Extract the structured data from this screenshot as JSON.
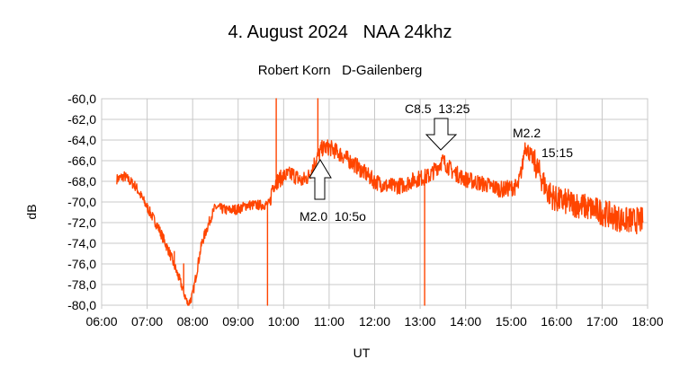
{
  "chart_data": {
    "type": "line",
    "title": "4. August 2024   NAA 24khz",
    "subtitle": "Robert Korn   D-Gailenberg",
    "xlabel": "UT",
    "ylabel": "dB",
    "xlim": [
      "06:00",
      "18:00"
    ],
    "ylim": [
      -80,
      -60
    ],
    "grid": true,
    "x_ticks": [
      "06:00",
      "07:00",
      "08:00",
      "09:00",
      "10:00",
      "11:00",
      "12:00",
      "13:00",
      "14:00",
      "15:00",
      "16:00",
      "17:00",
      "18:00"
    ],
    "y_ticks": [
      "-60,0",
      "-62,0",
      "-64,0",
      "-66,0",
      "-68,0",
      "-70,0",
      "-72,0",
      "-74,0",
      "-76,0",
      "-78,0",
      "-80,0"
    ],
    "series_color": "#ff4500",
    "series": [
      {
        "points": [
          [
            "06:20",
            -67.8
          ],
          [
            "06:30",
            -67.5
          ],
          [
            "06:45",
            -68.5
          ],
          [
            "07:00",
            -70.5
          ],
          [
            "07:15",
            -72.5
          ],
          [
            "07:30",
            -75.0
          ],
          [
            "07:45",
            -78.0
          ],
          [
            "07:54",
            -80.0
          ],
          [
            "08:00",
            -79.0
          ],
          [
            "08:12",
            -74.0
          ],
          [
            "08:24",
            -71.5
          ],
          [
            "08:30",
            -70.5
          ],
          [
            "08:45",
            -70.8
          ],
          [
            "09:00",
            -70.7
          ],
          [
            "09:12",
            -70.3
          ],
          [
            "09:30",
            -70.3
          ],
          [
            "09:42",
            -70.2
          ],
          [
            "09:45",
            -68.5
          ],
          [
            "09:51",
            -68.0
          ],
          [
            "10:00",
            -67.5
          ],
          [
            "10:12",
            -67.3
          ],
          [
            "10:24",
            -68.0
          ],
          [
            "10:33",
            -67.5
          ],
          [
            "10:42",
            -66.0
          ],
          [
            "10:51",
            -64.8
          ],
          [
            "11:00",
            -64.7
          ],
          [
            "11:18",
            -65.5
          ],
          [
            "11:36",
            -66.5
          ],
          [
            "12:00",
            -68.0
          ],
          [
            "12:18",
            -68.5
          ],
          [
            "12:36",
            -68.4
          ],
          [
            "12:54",
            -67.8
          ],
          [
            "13:12",
            -67.5
          ],
          [
            "13:30",
            -66.0
          ],
          [
            "13:42",
            -67.0
          ],
          [
            "14:00",
            -67.8
          ],
          [
            "14:30",
            -68.4
          ],
          [
            "14:48",
            -68.8
          ],
          [
            "15:09",
            -68.5
          ],
          [
            "15:15",
            -66.5
          ],
          [
            "15:18",
            -64.5
          ],
          [
            "15:30",
            -66.0
          ],
          [
            "15:48",
            -69.0
          ],
          [
            "16:00",
            -69.8
          ],
          [
            "16:30",
            -70.3
          ],
          [
            "17:00",
            -71.0
          ],
          [
            "17:30",
            -71.8
          ],
          [
            "17:54",
            -71.8
          ]
        ],
        "spikes": [
          [
            "07:36",
            -74.8
          ],
          [
            "07:48",
            -76.0
          ],
          [
            "09:39",
            -80.0
          ],
          [
            "09:50",
            -60.0
          ],
          [
            "10:45",
            -60.0
          ],
          [
            "13:06",
            -80.0
          ]
        ]
      }
    ],
    "annotations": [
      {
        "text": "M2.0  10:5o",
        "time": "10:50",
        "arrow": "up"
      },
      {
        "text": "C8.5  13:25",
        "time": "13:25",
        "arrow": "down"
      },
      {
        "text": "M2.2",
        "time": "15:15"
      },
      {
        "text": "15:15",
        "time": "15:15"
      }
    ]
  }
}
